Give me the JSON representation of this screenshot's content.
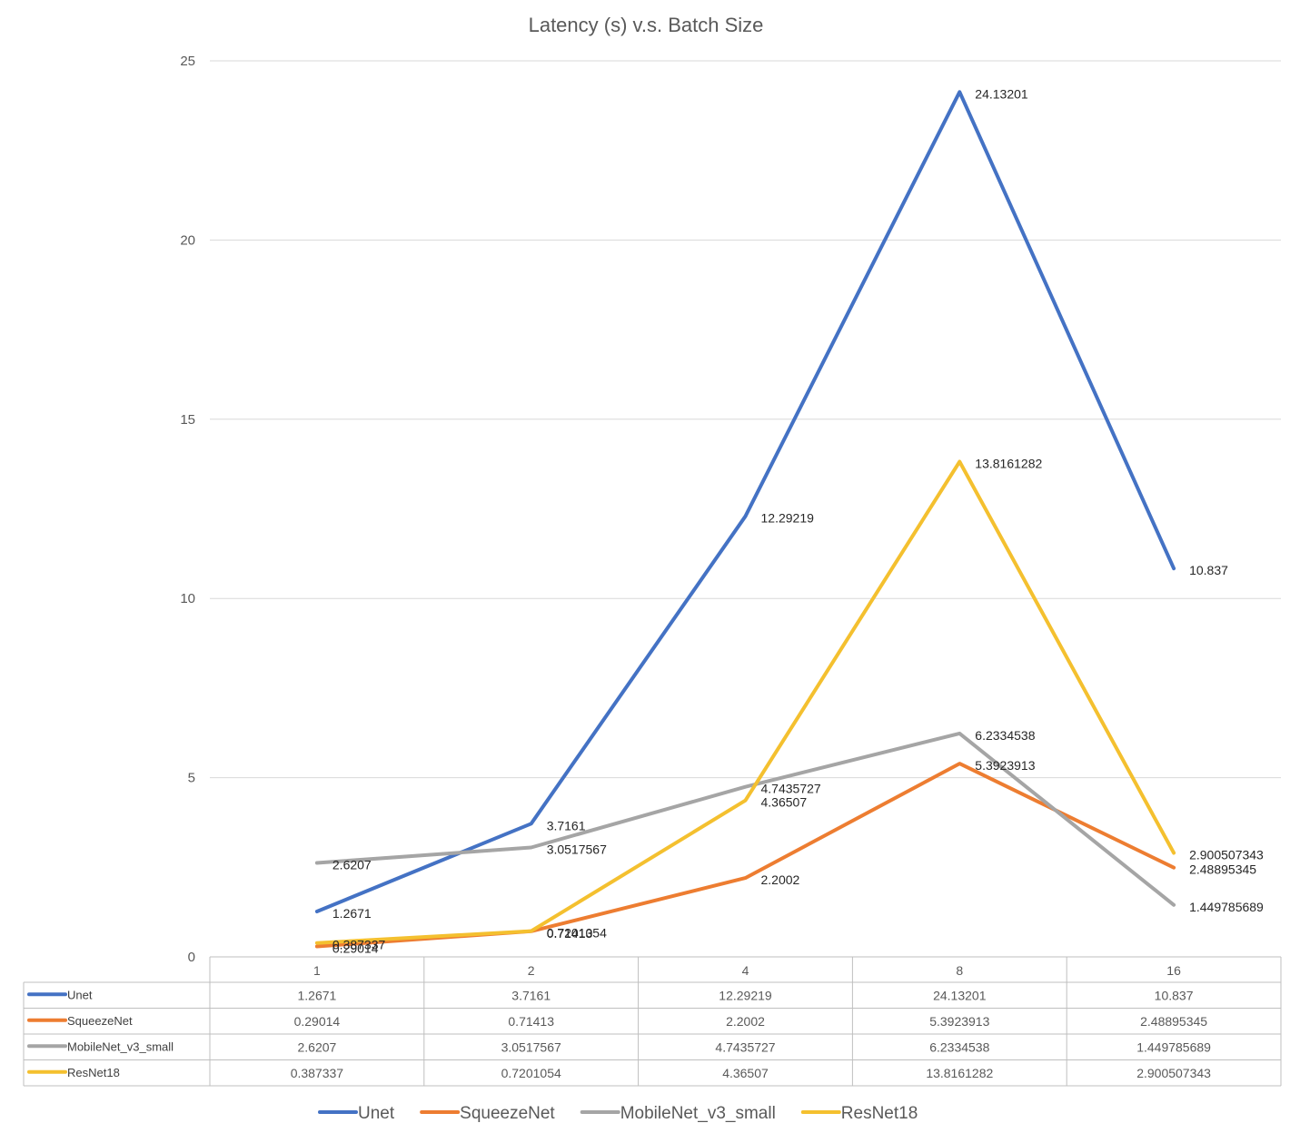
{
  "chart_data": {
    "type": "line",
    "title": "Latency (s) v.s. Batch Size",
    "xlabel": "",
    "ylabel": "",
    "categories": [
      "1",
      "2",
      "4",
      "8",
      "16"
    ],
    "ylim": [
      0,
      25
    ],
    "yticks": [
      0,
      5,
      10,
      15,
      20,
      25
    ],
    "grid": true,
    "legend_position": "bottom",
    "data_table": true,
    "series": [
      {
        "name": "Unet",
        "color": "#4472C4",
        "values": [
          1.2671,
          3.7161,
          12.29219,
          24.13201,
          10.837
        ],
        "labels": [
          "1.2671",
          "3.7161",
          "12.29219",
          "24.13201",
          "10.837"
        ]
      },
      {
        "name": "SqueezeNet",
        "color": "#ED7D31",
        "values": [
          0.29014,
          0.71413,
          2.2002,
          5.3923913,
          2.48895345
        ],
        "labels": [
          "0.29014",
          "0.71413",
          "2.2002",
          "5.3923913",
          "2.48895345"
        ]
      },
      {
        "name": "MobileNet_v3_small",
        "color": "#A5A5A5",
        "values": [
          2.6207,
          3.0517567,
          4.7435727,
          6.2334538,
          1.449785689
        ],
        "labels": [
          "2.6207",
          "3.0517567",
          "4.7435727",
          "6.2334538",
          "1.449785689"
        ]
      },
      {
        "name": "ResNet18",
        "color": "#F4C02F",
        "values": [
          0.387337,
          0.7201054,
          4.36507,
          13.8161282,
          2.900507343
        ],
        "labels": [
          "0.387337",
          "0.7201054",
          "4.36507",
          "13.8161282",
          "2.900507343"
        ]
      }
    ]
  }
}
